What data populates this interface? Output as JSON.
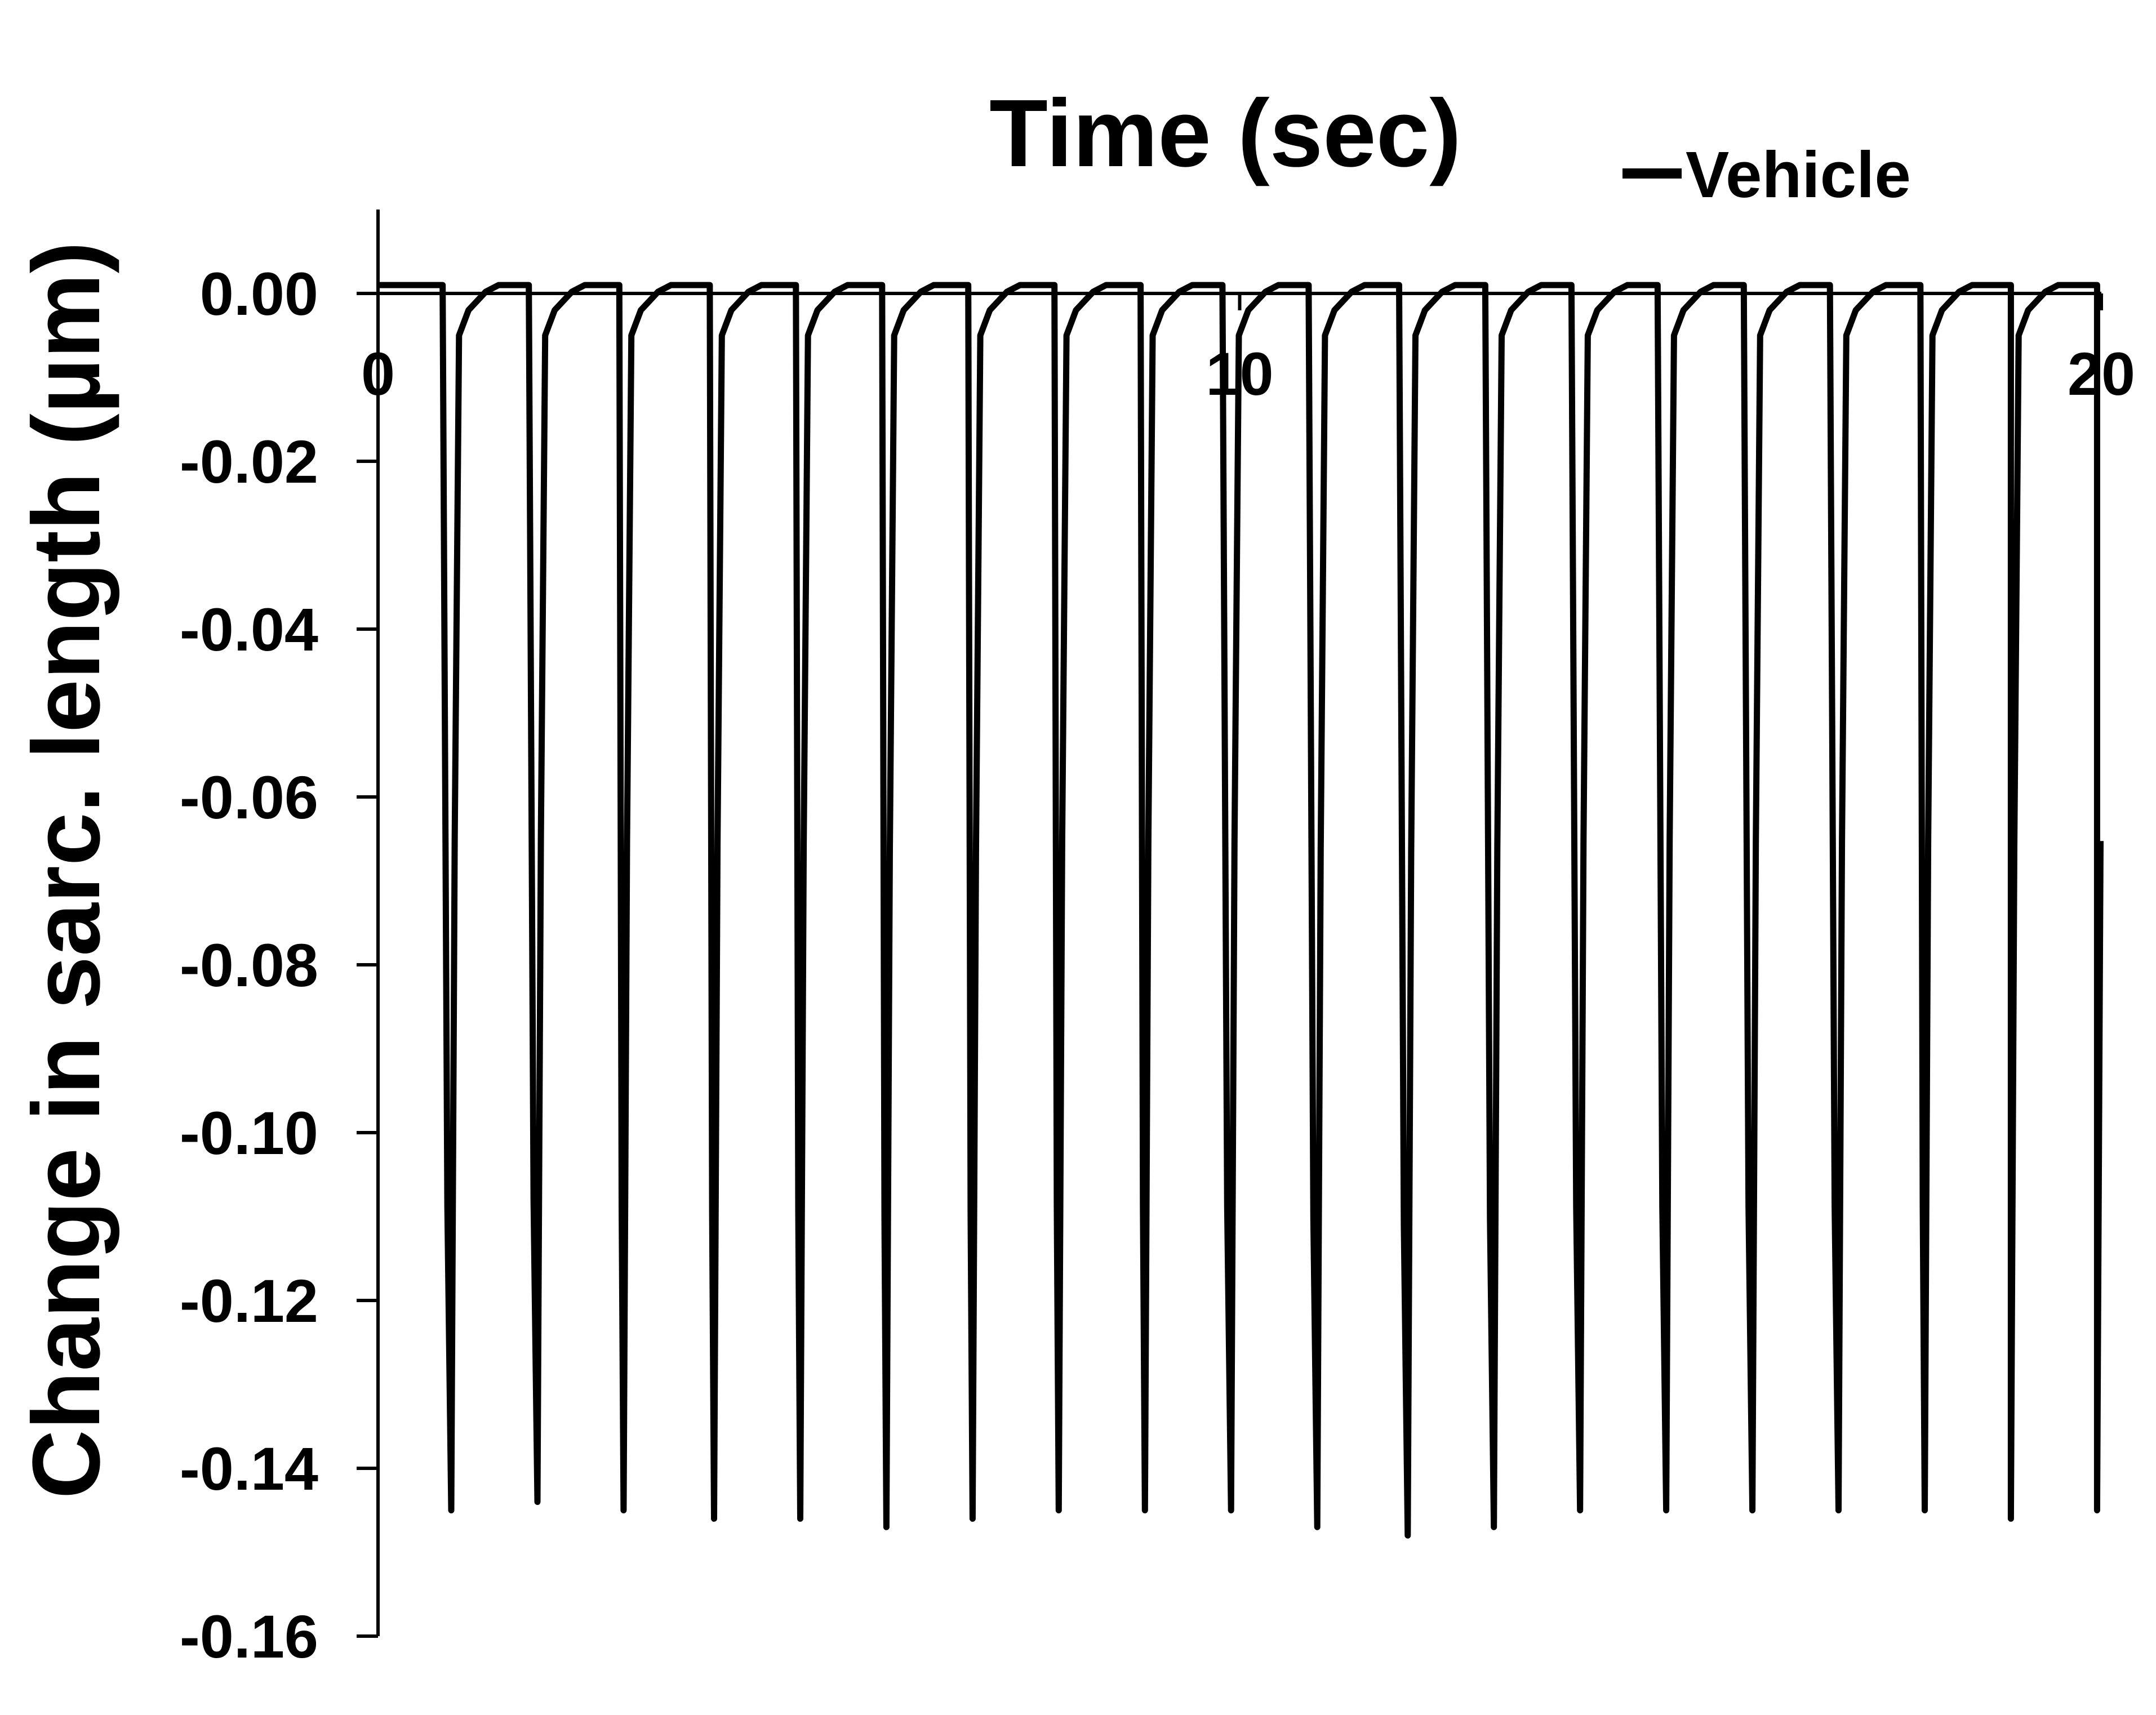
{
  "chart_data": {
    "type": "line",
    "xlabel": "Time (sec)",
    "ylabel": "Change in sarc. length (µm)",
    "x_axis_position": "top",
    "xlim": [
      0,
      20
    ],
    "ylim": [
      -0.16,
      0.01
    ],
    "x_ticks": [
      0,
      10,
      20
    ],
    "x_tick_labels": [
      "0",
      "10",
      "20"
    ],
    "y_ticks": [
      0,
      -0.02,
      -0.04,
      -0.06,
      -0.08,
      -0.1,
      -0.12,
      -0.14,
      -0.16
    ],
    "y_tick_labels": [
      "0.00",
      "-0.02",
      "-0.04",
      "-0.06",
      "-0.08",
      "-0.10",
      "-0.12",
      "-0.14",
      "-0.16"
    ],
    "legend_position": "top-right",
    "grid": false,
    "series": [
      {
        "name": "Vehicle",
        "color": "#000000",
        "baseline": 0.001,
        "beat_times": [
          0.75,
          1.75,
          2.8,
          3.85,
          4.85,
          5.85,
          6.85,
          7.85,
          8.85,
          9.8,
          10.8,
          11.85,
          12.85,
          13.85,
          14.85,
          15.85,
          16.85,
          17.9,
          18.95,
          19.95
        ],
        "trough_times": [
          0.85,
          1.85,
          2.85,
          3.9,
          4.9,
          5.9,
          6.9,
          7.9,
          8.9,
          9.9,
          10.9,
          11.95,
          12.95,
          13.95,
          14.95,
          15.95,
          16.95,
          17.95,
          18.95,
          19.95
        ],
        "trough_values": [
          -0.145,
          -0.144,
          -0.145,
          -0.146,
          -0.146,
          -0.147,
          -0.146,
          -0.145,
          -0.145,
          -0.145,
          -0.147,
          -0.148,
          -0.147,
          -0.145,
          -0.145,
          -0.145,
          -0.145,
          -0.145,
          -0.146,
          -0.145
        ]
      }
    ]
  }
}
